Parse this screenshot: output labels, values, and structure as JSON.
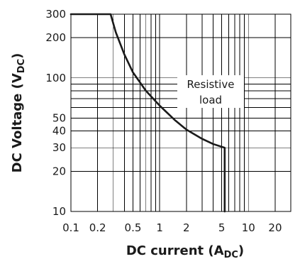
{
  "chart_data": {
    "type": "line",
    "title": "",
    "xscale": "log",
    "yscale": "log",
    "xlim": [
      0.1,
      30
    ],
    "ylim": [
      10,
      300
    ],
    "grid": true,
    "xlabel_main": "DC current (A",
    "xlabel_sub": "DC",
    "xlabel_end": ")",
    "ylabel_main": "DC Voltage (V",
    "ylabel_sub": "DC",
    "ylabel_end": ")",
    "x_ticks": [
      {
        "value": 0.1,
        "label": "0.1"
      },
      {
        "value": 0.2,
        "label": "0.2"
      },
      {
        "value": 0.5,
        "label": "0.5"
      },
      {
        "value": 1,
        "label": "1"
      },
      {
        "value": 2,
        "label": "2"
      },
      {
        "value": 5,
        "label": "5"
      },
      {
        "value": 10,
        "label": "10"
      },
      {
        "value": 20,
        "label": "20"
      }
    ],
    "y_ticks": [
      {
        "value": 10,
        "label": "10"
      },
      {
        "value": 20,
        "label": "20"
      },
      {
        "value": 30,
        "label": "30"
      },
      {
        "value": 40,
        "label": "40"
      },
      {
        "value": 50,
        "label": "50"
      },
      {
        "value": 100,
        "label": "100"
      },
      {
        "value": 200,
        "label": "200"
      },
      {
        "value": 300,
        "label": "300"
      }
    ],
    "x_grid": [
      0.1,
      0.2,
      0.3,
      0.4,
      0.5,
      0.6,
      0.7,
      0.8,
      0.9,
      1,
      2,
      3,
      4,
      5,
      6,
      7,
      8,
      9,
      10,
      20,
      30
    ],
    "y_grid": [
      10,
      20,
      30,
      40,
      50,
      60,
      70,
      80,
      90,
      100,
      200,
      300
    ],
    "series": [
      {
        "points": [
          [
            0.1,
            300
          ],
          [
            0.28,
            300
          ],
          [
            0.32,
            220
          ],
          [
            0.4,
            150
          ],
          [
            0.5,
            110
          ],
          [
            0.7,
            80
          ],
          [
            1.0,
            62
          ],
          [
            1.5,
            48
          ],
          [
            2.0,
            41
          ],
          [
            3.0,
            35
          ],
          [
            4.0,
            32
          ],
          [
            5.0,
            30.5
          ],
          [
            5.4,
            30
          ],
          [
            5.4,
            10
          ]
        ]
      }
    ],
    "annotation": {
      "lines": [
        "Resistive",
        "load"
      ],
      "x": 3,
      "y": 100
    }
  }
}
